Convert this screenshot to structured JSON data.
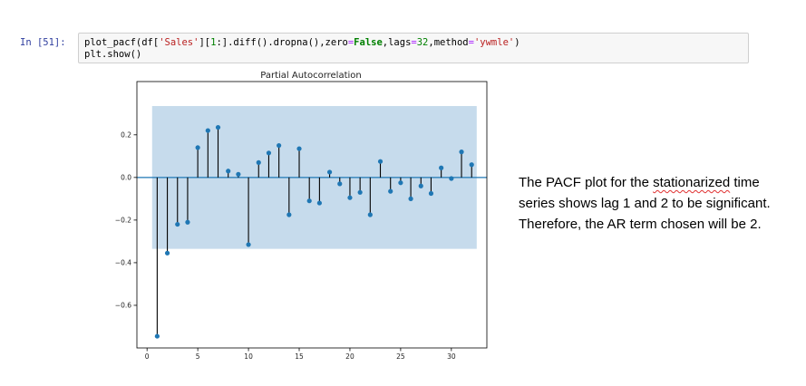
{
  "cell": {
    "prompt": "In [51]:",
    "code_line1": {
      "p1": "plot_pacf(df[",
      "s1": "'Sales'",
      "p2": "][",
      "n1": "1",
      "p3": ":].diff().dropna(),zero",
      "op1": "=",
      "k1": "False",
      "p4": ",lags",
      "op2": "=",
      "n2": "32",
      "p5": ",method",
      "op3": "=",
      "s2": "'ywmle'",
      "p6": ")"
    },
    "code_line2": "plt.show()"
  },
  "caption": {
    "line1_a": "The PACF plot for the ",
    "line1_b": "stationarized",
    "line1_c": " time",
    "line2": "series shows lag 1 and 2 to be significant.",
    "line3": "Therefore, the AR term chosen will be 2."
  },
  "colors": {
    "stem": "#000000",
    "marker": "#1f77b4",
    "band": "#c6dbec",
    "zero_line": "#1f77b4"
  },
  "chart_data": {
    "type": "scatter",
    "title": "Partial Autocorrelation",
    "xlabel": "",
    "ylabel": "",
    "xlim": [
      -1,
      33.5
    ],
    "ylim": [
      -0.8,
      0.45
    ],
    "xticks": [
      0,
      5,
      10,
      15,
      20,
      25,
      30
    ],
    "yticks": [
      -0.6,
      -0.4,
      -0.2,
      0.0,
      0.2
    ],
    "ytick_labels": [
      "−0.6",
      "−0.4",
      "−0.2",
      "0.0",
      "0.2"
    ],
    "confidence_band": [
      -0.335,
      0.335
    ],
    "band_x_range": [
      0.5,
      32.5
    ],
    "grid": false,
    "x": [
      1,
      2,
      3,
      4,
      5,
      6,
      7,
      8,
      9,
      10,
      11,
      12,
      13,
      14,
      15,
      16,
      17,
      18,
      19,
      20,
      21,
      22,
      23,
      24,
      25,
      26,
      27,
      28,
      29,
      30,
      31,
      32
    ],
    "values": [
      -0.745,
      -0.355,
      -0.22,
      -0.21,
      0.14,
      0.22,
      0.235,
      0.03,
      0.015,
      -0.315,
      0.07,
      0.115,
      0.15,
      -0.175,
      0.135,
      -0.11,
      -0.12,
      0.025,
      -0.03,
      -0.095,
      -0.07,
      -0.175,
      0.075,
      -0.065,
      -0.025,
      -0.1,
      -0.04,
      -0.075,
      0.045,
      -0.005,
      0.12,
      0.06
    ]
  }
}
